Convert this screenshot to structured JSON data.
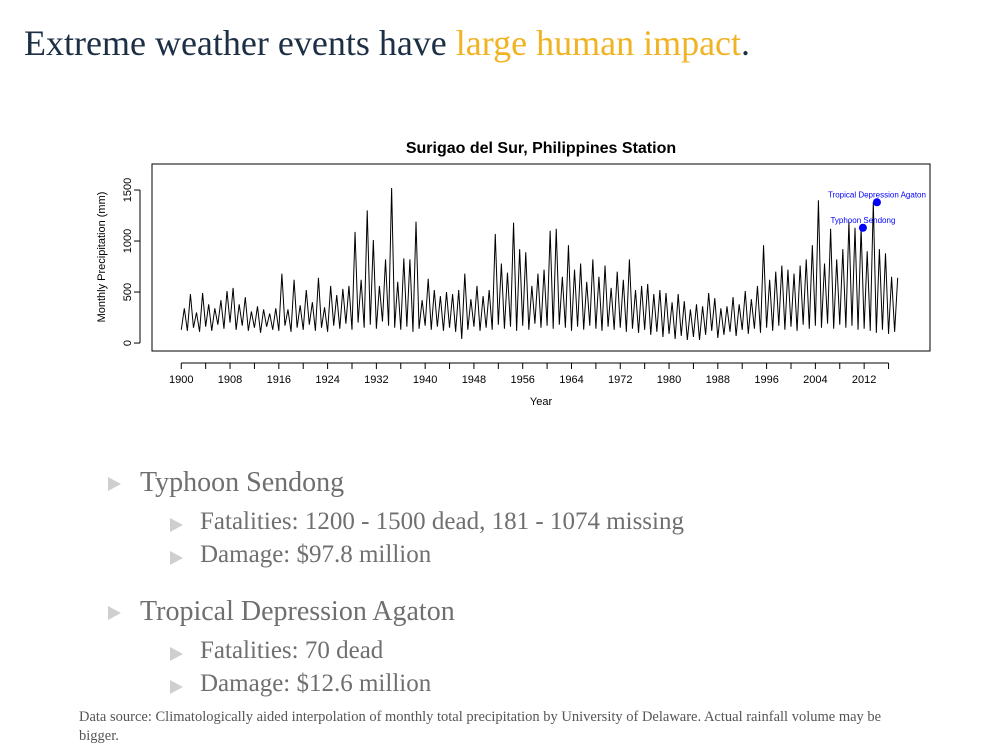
{
  "slide": {
    "title_parts": [
      "Extreme weather events have ",
      "large human impact",
      "."
    ],
    "bullets": [
      {
        "text": "Typhoon Sendong",
        "sub": [
          "Fatalities: 1200 - 1500 dead, 181 - 1074 missing",
          "Damage: $97.8 million"
        ]
      },
      {
        "text": "Tropical Depression Agaton",
        "sub": [
          "Fatalities: 70 dead",
          "Damage: $12.6 million"
        ]
      }
    ],
    "footnote": "Data source: Climatologically aided interpolation of monthly total precipitation by University of Delaware. Actual rainfall volume may be bigger."
  },
  "chart_data": {
    "type": "line",
    "title": "Surigao del Sur, Philippines Station",
    "x_label": "Year",
    "y_label": "Monthly Precipitation (mm)",
    "xlim": [
      1895.2,
      2022.8
    ],
    "ylim": [
      -78,
      1755
    ],
    "xticks": [
      1900,
      1908,
      1916,
      1924,
      1932,
      1940,
      1948,
      1956,
      1964,
      1972,
      1980,
      1988,
      1996,
      2004,
      2012
    ],
    "minor_xticks": [
      1904,
      1912,
      1920,
      1928,
      1936,
      1944,
      1952,
      1960,
      1968,
      1976,
      1984,
      1992,
      2000,
      2008,
      2016
    ],
    "yticks": [
      0,
      500,
      1000,
      1500
    ],
    "series": [
      {
        "name": "Monthly precipitation",
        "color": "#000000",
        "x": [
          1900,
          1900.5,
          1901,
          1901.5,
          1902,
          1902.5,
          1903,
          1903.5,
          1904,
          1904.5,
          1905,
          1905.5,
          1906,
          1906.5,
          1907,
          1907.5,
          1908,
          1908.5,
          1909,
          1909.5,
          1910,
          1910.5,
          1911,
          1911.5,
          1912,
          1912.5,
          1913,
          1913.5,
          1914,
          1914.5,
          1915,
          1915.5,
          1916,
          1916.5,
          1917,
          1917.5,
          1918,
          1918.5,
          1919,
          1919.5,
          1920,
          1920.5,
          1921,
          1921.5,
          1922,
          1922.5,
          1923,
          1923.5,
          1924,
          1924.5,
          1925,
          1925.5,
          1926,
          1926.5,
          1927,
          1927.5,
          1928,
          1928.5,
          1929,
          1929.5,
          1930,
          1930.5,
          1931,
          1931.5,
          1932,
          1932.5,
          1933,
          1933.5,
          1934,
          1934.5,
          1935,
          1935.5,
          1936,
          1936.5,
          1937,
          1937.5,
          1938,
          1938.5,
          1939,
          1939.5,
          1940,
          1940.5,
          1941,
          1941.5,
          1942,
          1942.5,
          1943,
          1943.5,
          1944,
          1944.5,
          1945,
          1945.5,
          1946,
          1946.5,
          1947,
          1947.5,
          1948,
          1948.5,
          1949,
          1949.5,
          1950,
          1950.5,
          1951,
          1951.5,
          1952,
          1952.5,
          1953,
          1953.5,
          1954,
          1954.5,
          1955,
          1955.5,
          1956,
          1956.5,
          1957,
          1957.5,
          1958,
          1958.5,
          1959,
          1959.5,
          1960,
          1960.5,
          1961,
          1961.5,
          1962,
          1962.5,
          1963,
          1963.5,
          1964,
          1964.5,
          1965,
          1965.5,
          1966,
          1966.5,
          1967,
          1967.5,
          1968,
          1968.5,
          1969,
          1969.5,
          1970,
          1970.5,
          1971,
          1971.5,
          1972,
          1972.5,
          1973,
          1973.5,
          1974,
          1974.5,
          1975,
          1975.5,
          1976,
          1976.5,
          1977,
          1977.5,
          1978,
          1978.5,
          1979,
          1979.5,
          1980,
          1980.5,
          1981,
          1981.5,
          1982,
          1982.5,
          1983,
          1983.5,
          1984,
          1984.5,
          1985,
          1985.5,
          1986,
          1986.5,
          1987,
          1987.5,
          1988,
          1988.5,
          1989,
          1989.5,
          1990,
          1990.5,
          1991,
          1991.5,
          1992,
          1992.5,
          1993,
          1993.5,
          1994,
          1994.5,
          1995,
          1995.5,
          1996,
          1996.5,
          1997,
          1997.5,
          1998,
          1998.5,
          1999,
          1999.5,
          2000,
          2000.5,
          2001,
          2001.5,
          2002,
          2002.5,
          2003,
          2003.5,
          2004,
          2004.5,
          2005,
          2005.5,
          2006,
          2006.5,
          2007,
          2007.5,
          2008,
          2008.5,
          2009,
          2009.5,
          2010,
          2010.5,
          2011,
          2011.5,
          2012,
          2012.5,
          2013,
          2013.5,
          2014,
          2014.5,
          2015,
          2015.5,
          2016,
          2016.5,
          2017,
          2017.5
        ],
        "values": [
          130,
          340,
          120,
          480,
          150,
          300,
          110,
          490,
          160,
          380,
          120,
          340,
          180,
          420,
          140,
          510,
          200,
          540,
          130,
          380,
          170,
          450,
          120,
          310,
          150,
          360,
          100,
          330,
          160,
          290,
          130,
          340,
          120,
          680,
          170,
          330,
          110,
          620,
          150,
          370,
          130,
          520,
          180,
          400,
          120,
          640,
          150,
          350,
          110,
          560,
          170,
          470,
          140,
          530,
          190,
          560,
          130,
          1090,
          200,
          620,
          150,
          1300,
          180,
          1010,
          140,
          560,
          210,
          820,
          170,
          1520,
          150,
          600,
          130,
          830,
          160,
          820,
          110,
          1190,
          140,
          420,
          170,
          630,
          130,
          520,
          160,
          460,
          120,
          500,
          150,
          480,
          110,
          520,
          40,
          680,
          130,
          430,
          160,
          560,
          120,
          460,
          150,
          520,
          130,
          1070,
          180,
          780,
          140,
          690,
          160,
          1180,
          120,
          920,
          170,
          890,
          130,
          560,
          190,
          680,
          150,
          720,
          170,
          1100,
          140,
          1120,
          180,
          650,
          150,
          960,
          120,
          720,
          160,
          780,
          130,
          600,
          170,
          820,
          140,
          650,
          120,
          760,
          160,
          540,
          130,
          700,
          150,
          620,
          110,
          820,
          140,
          520,
          100,
          560,
          130,
          580,
          80,
          480,
          110,
          520,
          60,
          490,
          90,
          400,
          40,
          480,
          70,
          410,
          30,
          330,
          60,
          380,
          30,
          360,
          80,
          490,
          120,
          440,
          50,
          340,
          80,
          360,
          110,
          450,
          70,
          380,
          130,
          510,
          90,
          430,
          140,
          560,
          100,
          960,
          150,
          620,
          120,
          700,
          170,
          760,
          130,
          720,
          160,
          680,
          120,
          760,
          180,
          820,
          140,
          960,
          170,
          1400,
          150,
          780,
          190,
          1120,
          140,
          820,
          180,
          920,
          150,
          1190,
          170,
          1130,
          130,
          1130,
          140,
          900,
          120,
          1380,
          100,
          920,
          130,
          880,
          90,
          650,
          110,
          640
        ]
      }
    ],
    "highlights": [
      {
        "label": "Typhoon Sendong",
        "x": 2011.8,
        "y": 1130,
        "color": "#0000ff"
      },
      {
        "label": "Tropical Depression Agaton",
        "x": 2014.1,
        "y": 1380,
        "color": "#0000ff"
      }
    ]
  }
}
